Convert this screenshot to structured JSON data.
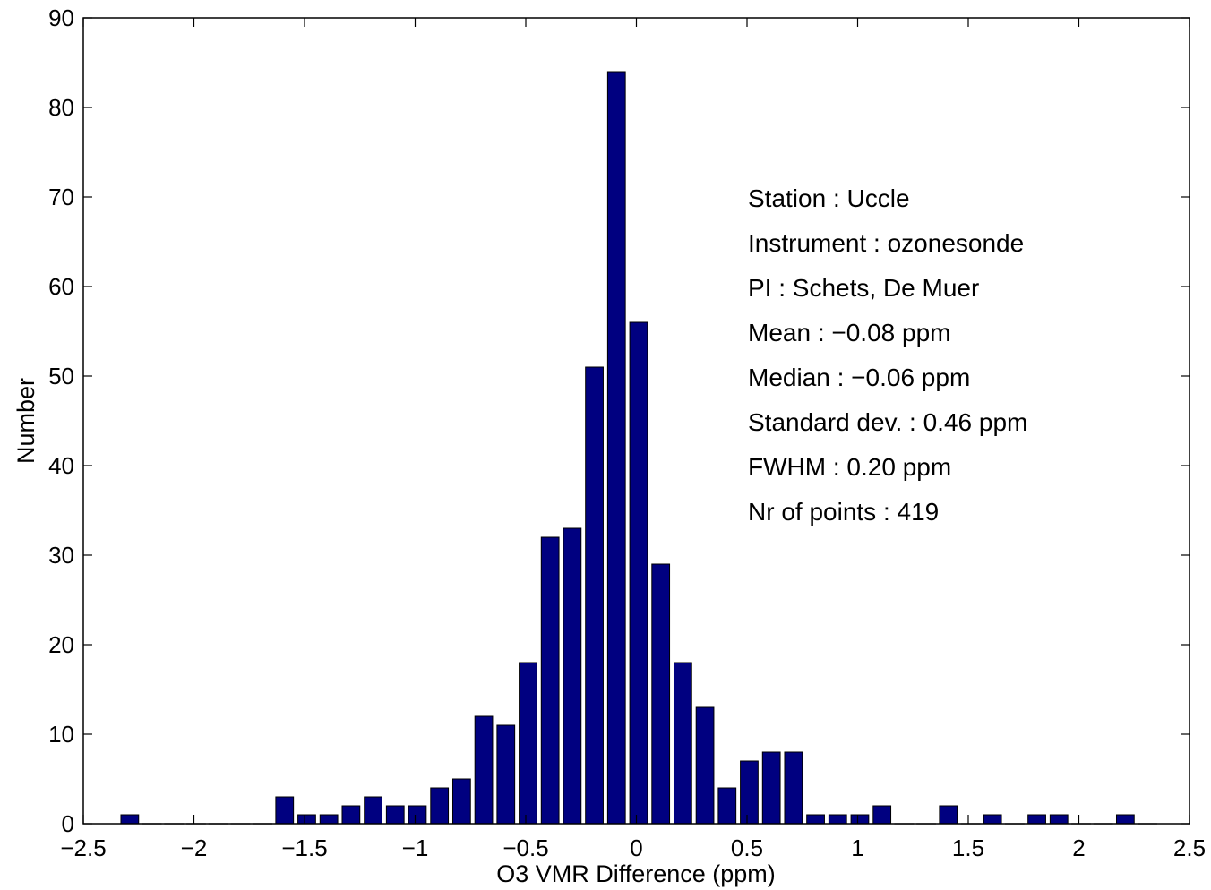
{
  "chart_data": {
    "type": "bar",
    "title": "",
    "xlabel": "O3 VMR Difference (ppm)",
    "ylabel": "Number",
    "xlim": [
      -2.5,
      2.5
    ],
    "ylim": [
      0,
      90
    ],
    "xticks": [
      -2.5,
      -2,
      -1.5,
      -1,
      -0.5,
      0,
      0.5,
      1,
      1.5,
      2,
      2.5
    ],
    "xtick_labels": [
      "−2.5",
      "−2",
      "−1.5",
      "−1",
      "−0.5",
      "0",
      "0.5",
      "1",
      "1.5",
      "2",
      "2.5"
    ],
    "yticks": [
      0,
      10,
      20,
      30,
      40,
      50,
      60,
      70,
      80,
      90
    ],
    "ytick_labels": [
      "0",
      "10",
      "20",
      "30",
      "40",
      "50",
      "60",
      "70",
      "80",
      "90"
    ],
    "bar_color": "#000080",
    "bin_width": 0.1,
    "x": [
      -2.29,
      -2.19,
      -2.09,
      -1.99,
      -1.89,
      -1.79,
      -1.69,
      -1.59,
      -1.49,
      -1.39,
      -1.29,
      -1.19,
      -1.09,
      -0.99,
      -0.89,
      -0.79,
      -0.69,
      -0.59,
      -0.49,
      -0.39,
      -0.29,
      -0.19,
      -0.09,
      0.01,
      0.11,
      0.21,
      0.31,
      0.41,
      0.51,
      0.61,
      0.71,
      0.81,
      0.91,
      1.01,
      1.11,
      1.21,
      1.31,
      1.41,
      1.51,
      1.61,
      1.71,
      1.81,
      1.91,
      2.01,
      2.11,
      2.21,
      2.31
    ],
    "values": [
      1,
      0,
      0,
      0,
      0,
      0,
      0,
      3,
      1,
      1,
      2,
      3,
      2,
      2,
      4,
      5,
      12,
      11,
      18,
      32,
      33,
      51,
      84,
      56,
      29,
      18,
      13,
      4,
      7,
      8,
      8,
      1,
      1,
      1,
      2,
      0,
      0,
      2,
      0,
      1,
      0,
      1,
      1,
      0,
      0,
      1,
      0
    ],
    "annotations": [
      "Station : Uccle",
      "Instrument : ozonesonde",
      "PI : Schets, De Muer",
      "Mean : −0.08 ppm",
      "Median : −0.06 ppm",
      "Standard dev. : 0.46 ppm",
      "FWHM : 0.20 ppm",
      "Nr of points : 419"
    ],
    "grid": false,
    "legend": "none"
  }
}
